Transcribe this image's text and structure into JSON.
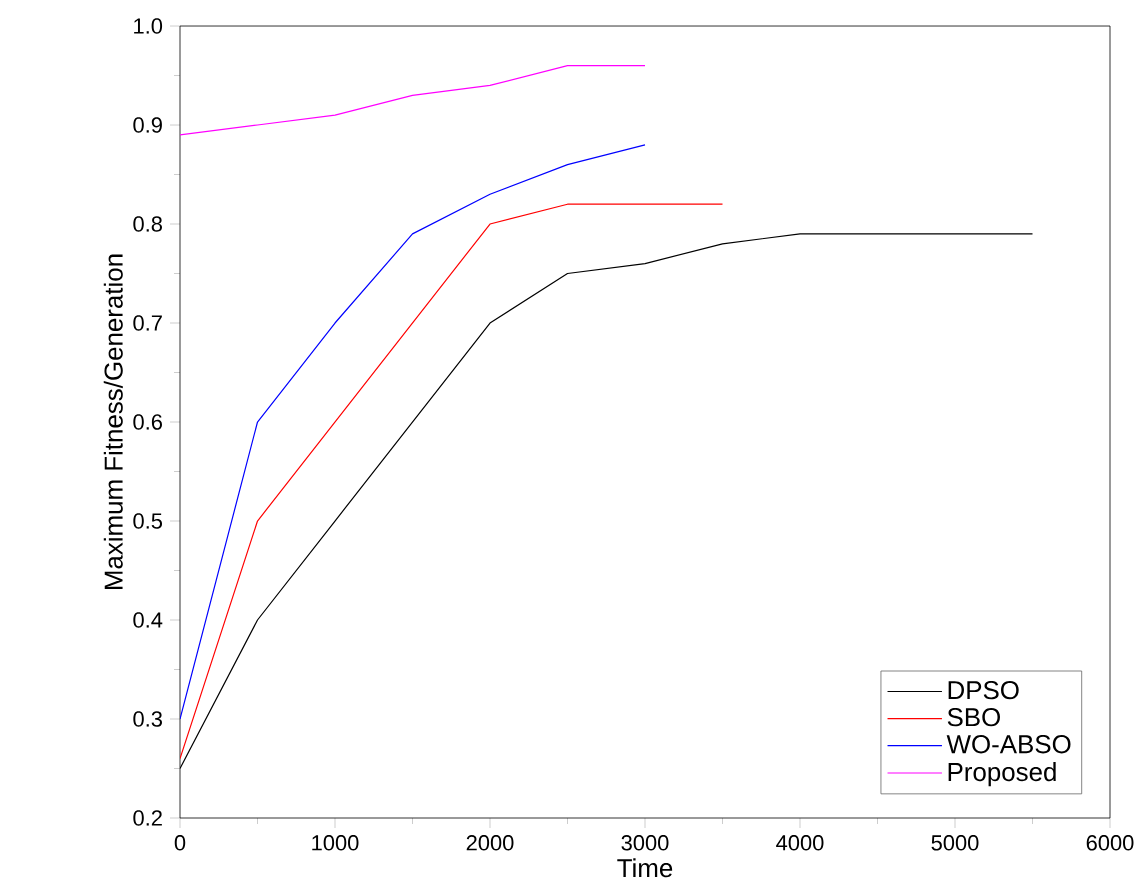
{
  "chart_data": {
    "type": "line",
    "xlabel": "Time",
    "ylabel": "Maximum Fitness/Generation",
    "xlim": [
      0,
      6000
    ],
    "xticks": [
      0,
      1000,
      2000,
      3000,
      4000,
      5000,
      6000
    ],
    "ylim": [
      0.2,
      1.0
    ],
    "yticks": [
      0.2,
      0.3,
      0.4,
      0.5,
      0.6,
      0.7,
      0.8,
      0.9,
      {
        "value": 1.0,
        "label": "1.0"
      }
    ],
    "legend": "bottom right",
    "grid": false,
    "marker": "none",
    "line_style": "solid",
    "series": [
      {
        "name": "DPSO",
        "color": "#000000",
        "x": [
          0,
          500,
          1000,
          1500,
          2000,
          2500,
          3000,
          3500,
          4000,
          4500,
          5000,
          5500
        ],
        "values": [
          0.25,
          0.4,
          0.5,
          0.6,
          0.7,
          0.75,
          0.76,
          0.78,
          0.79,
          0.79,
          0.79,
          0.79
        ]
      },
      {
        "name": "SBO",
        "color": "#ff0000",
        "x": [
          0,
          500,
          1000,
          1500,
          2000,
          2500,
          3000,
          3500
        ],
        "values": [
          0.26,
          0.5,
          0.6,
          0.7,
          0.8,
          0.82,
          0.82,
          0.82
        ]
      },
      {
        "name": "WO-ABSO",
        "color": "#0000ff",
        "x": [
          0,
          500,
          1000,
          1500,
          2000,
          2500,
          3000
        ],
        "values": [
          0.3,
          0.6,
          0.7,
          0.79,
          0.83,
          0.86,
          0.88
        ]
      },
      {
        "name": "Proposed",
        "color": "#ff00ff",
        "x": [
          0,
          500,
          1000,
          1500,
          2000,
          2500,
          3000
        ],
        "values": [
          0.89,
          0.9,
          0.91,
          0.93,
          0.94,
          0.96,
          0.96
        ]
      }
    ]
  }
}
